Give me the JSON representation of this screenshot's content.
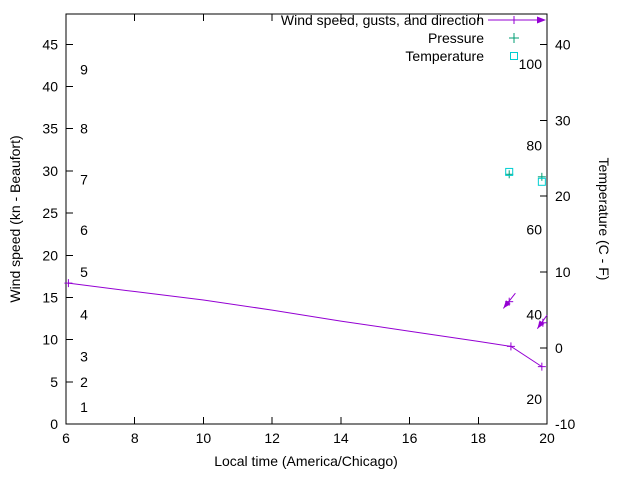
{
  "chart_data": {
    "type": "line",
    "title": "",
    "xlabel": "Local time (America/Chicago)",
    "ylabel_left": "Wind speed (kn - Beaufort)",
    "ylabel_right": "Temperature (C - F)",
    "xlim": [
      6,
      20
    ],
    "y_left_lim": [
      0,
      48.6
    ],
    "y_right_lim": [
      -10,
      44
    ],
    "x_ticks": [
      6,
      8,
      10,
      12,
      14,
      16,
      18,
      20
    ],
    "y_left_ticks": [
      0,
      5,
      10,
      15,
      20,
      25,
      30,
      35,
      40,
      45
    ],
    "y_right_ticks": [
      -10,
      0,
      10,
      20,
      30,
      40
    ],
    "beaufort_scale_labels": [
      {
        "label": "1",
        "kn": 2
      },
      {
        "label": "2",
        "kn": 5
      },
      {
        "label": "3",
        "kn": 8
      },
      {
        "label": "4",
        "kn": 13
      },
      {
        "label": "5",
        "kn": 18
      },
      {
        "label": "6",
        "kn": 23
      },
      {
        "label": "7",
        "kn": 29
      },
      {
        "label": "8",
        "kn": 35
      },
      {
        "label": "9",
        "kn": 42
      }
    ],
    "fahrenheit_scale_labels": [
      {
        "label": "20",
        "celsius": -6.7
      },
      {
        "label": "40",
        "celsius": 4.4
      },
      {
        "label": "60",
        "celsius": 15.6
      },
      {
        "label": "80",
        "celsius": 26.7
      },
      {
        "label": "100",
        "celsius": 37.4
      }
    ],
    "legend": [
      {
        "label": "Wind speed, gusts, and direction",
        "marker": "line-plus-arrow",
        "color": "#9400d3"
      },
      {
        "label": "Pressure",
        "marker": "plus",
        "color": "#009e73"
      },
      {
        "label": "Temperature",
        "marker": "open-square",
        "color": "#00ced1"
      }
    ],
    "series": {
      "wind_speed": {
        "name": "Wind speed",
        "axis": "left",
        "color": "#9400d3",
        "points": [
          [
            6.07,
            16.7
          ],
          [
            8,
            15.7
          ],
          [
            10,
            14.7
          ],
          [
            12,
            13.5
          ],
          [
            14,
            12.2
          ],
          [
            16,
            11.0
          ],
          [
            18,
            9.8
          ],
          [
            18.95,
            9.2
          ],
          [
            19.85,
            6.8
          ]
        ],
        "marker_points": [
          [
            6.07,
            16.7
          ],
          [
            18.95,
            9.2
          ],
          [
            19.85,
            6.8
          ]
        ]
      },
      "wind_gusts": {
        "name": "Gusts and direction",
        "axis": "left",
        "color": "#9400d3",
        "marker_points": [
          [
            18.9,
            14.5
          ],
          [
            19.88,
            12.0
          ]
        ],
        "direction_arrows": [
          {
            "tail": [
              19.08,
              15.5
            ],
            "head": [
              18.73,
              13.7
            ]
          },
          {
            "tail": [
              20.0,
              12.9
            ],
            "head": [
              19.72,
              11.3
            ]
          }
        ]
      },
      "pressure": {
        "name": "Pressure",
        "axis": "left",
        "color": "#009e73",
        "points": [
          [
            18.9,
            29.6
          ],
          [
            19.85,
            29.3
          ]
        ]
      },
      "temperature": {
        "name": "Temperature",
        "axis": "right",
        "color": "#00ced1",
        "points": [
          [
            18.9,
            23.2
          ],
          [
            19.85,
            21.9
          ]
        ]
      }
    }
  }
}
